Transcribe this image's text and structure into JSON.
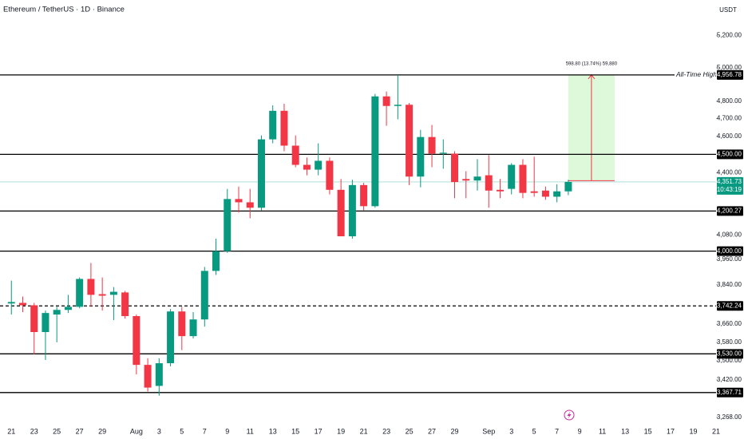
{
  "chart_data": {
    "type": "candlestick",
    "title": "Ethereum / TetherUS · 1D · Binance",
    "currency": "USDT",
    "log_scale": true,
    "grid": false,
    "up_color": "#089981",
    "down_color": "#f23645",
    "ylim": [
      3245,
      5430
    ],
    "yticks": [
      {
        "value": 5200,
        "label": "5,200.00"
      },
      {
        "value": 5000,
        "label": "5,000.00"
      },
      {
        "value": 4800,
        "label": "4,800.00"
      },
      {
        "value": 4700,
        "label": "4,700.00"
      },
      {
        "value": 4600,
        "label": "4,600.00"
      },
      {
        "value": 4400,
        "label": "4,400.00"
      },
      {
        "value": 4080,
        "label": "4,080.00"
      },
      {
        "value": 3960,
        "label": "3,960.00"
      },
      {
        "value": 3840,
        "label": "3,840.00"
      },
      {
        "value": 3660,
        "label": "3,660.00"
      },
      {
        "value": 3580,
        "label": "3,580.00"
      },
      {
        "value": 3500,
        "label": "3,500.00"
      },
      {
        "value": 3420,
        "label": "3,420.00"
      },
      {
        "value": 3268,
        "label": "3,268.00"
      }
    ],
    "xlim": [
      "07-20",
      "09-21"
    ],
    "xticks": [
      {
        "value": "07-21",
        "label": "21"
      },
      {
        "value": "07-23",
        "label": "23"
      },
      {
        "value": "07-25",
        "label": "25"
      },
      {
        "value": "07-27",
        "label": "27"
      },
      {
        "value": "07-29",
        "label": "29"
      },
      {
        "value": "08-01",
        "label": "Aug"
      },
      {
        "value": "08-03",
        "label": "3"
      },
      {
        "value": "08-05",
        "label": "5"
      },
      {
        "value": "08-07",
        "label": "7"
      },
      {
        "value": "08-09",
        "label": "9"
      },
      {
        "value": "08-11",
        "label": "11"
      },
      {
        "value": "08-13",
        "label": "13"
      },
      {
        "value": "08-15",
        "label": "15"
      },
      {
        "value": "08-17",
        "label": "17"
      },
      {
        "value": "08-19",
        "label": "19"
      },
      {
        "value": "08-21",
        "label": "21"
      },
      {
        "value": "08-23",
        "label": "23"
      },
      {
        "value": "08-25",
        "label": "25"
      },
      {
        "value": "08-27",
        "label": "27"
      },
      {
        "value": "08-29",
        "label": "29"
      },
      {
        "value": "09-01",
        "label": "Sep"
      },
      {
        "value": "09-03",
        "label": "3"
      },
      {
        "value": "09-05",
        "label": "5"
      },
      {
        "value": "09-07",
        "label": "7"
      },
      {
        "value": "09-09",
        "label": "9"
      },
      {
        "value": "09-11",
        "label": "11"
      },
      {
        "value": "09-13",
        "label": "13"
      },
      {
        "value": "09-15",
        "label": "15"
      },
      {
        "value": "09-17",
        "label": "17"
      },
      {
        "value": "09-19",
        "label": "19"
      },
      {
        "value": "09-21",
        "label": "21"
      }
    ],
    "x": [
      "07-21",
      "07-22",
      "07-23",
      "07-24",
      "07-25",
      "07-26",
      "07-27",
      "07-28",
      "07-29",
      "07-30",
      "07-31",
      "08-01",
      "08-02",
      "08-03",
      "08-04",
      "08-05",
      "08-06",
      "08-07",
      "08-08",
      "08-09",
      "08-10",
      "08-11",
      "08-12",
      "08-13",
      "08-14",
      "08-15",
      "08-16",
      "08-17",
      "08-18",
      "08-19",
      "08-20",
      "08-21",
      "08-22",
      "08-23",
      "08-24",
      "08-25",
      "08-26",
      "08-27",
      "08-28",
      "08-29",
      "08-30",
      "08-31",
      "09-01",
      "09-02",
      "09-03",
      "09-04",
      "09-05",
      "09-06",
      "09-07",
      "09-08"
    ],
    "open": [
      3753,
      3756,
      3745,
      3625,
      3703,
      3724,
      3738,
      3867,
      3796,
      3793,
      3804,
      3696,
      3483,
      3395,
      3490,
      3717,
      3607,
      3681,
      3905,
      4000,
      4262,
      4245,
      4217,
      4583,
      4745,
      4548,
      4443,
      4417,
      4465,
      4310,
      4073,
      4335,
      4225,
      4829,
      4773,
      4780,
      4380,
      4596,
      4504,
      4504,
      4367,
      4359,
      4387,
      4310,
      4315,
      4443,
      4302,
      4306,
      4274,
      4302
    ],
    "high": [
      3859,
      3785,
      3756,
      3721,
      3738,
      3793,
      3874,
      3943,
      3874,
      3829,
      3811,
      3703,
      3511,
      3511,
      3728,
      3738,
      3714,
      3924,
      4061,
      4315,
      4327,
      4315,
      4605,
      4777,
      4786,
      4605,
      4483,
      4561,
      4483,
      4367,
      4363,
      4347,
      4844,
      4858,
      4956,
      4790,
      4636,
      4664,
      4583,
      4517,
      4409,
      4474,
      4496,
      4367,
      4452,
      4474,
      4487,
      4327,
      4339,
      4363
    ],
    "low": [
      3703,
      3714,
      3528,
      3504,
      3580,
      3710,
      3731,
      3738,
      3721,
      3678,
      3685,
      3443,
      3372,
      3355,
      3477,
      3546,
      3597,
      3649,
      3886,
      3992,
      4192,
      4163,
      4204,
      4561,
      4517,
      4430,
      4387,
      4387,
      4286,
      4073,
      4061,
      4204,
      4217,
      4659,
      4696,
      4335,
      4323,
      4430,
      4422,
      4266,
      4266,
      4306,
      4217,
      4266,
      4286,
      4266,
      4274,
      4258,
      4245,
      4282
    ],
    "close": [
      3760,
      3745,
      3625,
      3710,
      3724,
      3738,
      3867,
      3793,
      3789,
      3807,
      3696,
      3483,
      3388,
      3490,
      3717,
      3607,
      3681,
      3905,
      4000,
      4262,
      4245,
      4217,
      4583,
      4745,
      4548,
      4443,
      4417,
      4465,
      4310,
      4073,
      4335,
      4225,
      4829,
      4773,
      4780,
      4380,
      4596,
      4504,
      4509,
      4351,
      4359,
      4380,
      4306,
      4302,
      4443,
      4294,
      4294,
      4274,
      4302,
      4351.73
    ],
    "levels": [
      {
        "value": 4956.78,
        "label": "4,956.78",
        "dashed": false
      },
      {
        "value": 4500,
        "label": "4,500.00",
        "dashed": false
      },
      {
        "value": 4200.27,
        "label": "4,200.27",
        "dashed": false
      },
      {
        "value": 4000,
        "label": "4,000.00",
        "dashed": false
      },
      {
        "value": 3742.24,
        "label": "3,742.24",
        "dashed": true
      },
      {
        "value": 3530,
        "label": "3,530.00",
        "dashed": false
      },
      {
        "value": 3367.71,
        "label": "3,367.71",
        "dashed": false
      }
    ],
    "level_annotation": "All-Time High",
    "last": {
      "value": 4351.73,
      "label": "4,351.73",
      "countdown": "10:43:19"
    },
    "measure": {
      "from": 4357.98,
      "to": 4956.78,
      "label": "598.80 (13.74%) 59,880"
    }
  }
}
